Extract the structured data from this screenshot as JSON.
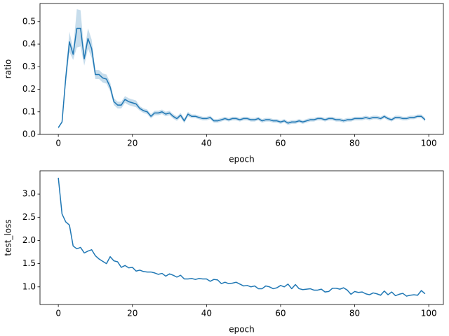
{
  "chart_data": [
    {
      "type": "line",
      "x_label": "epoch",
      "y_label": "ratio",
      "x": [
        0,
        1,
        2,
        3,
        4,
        5,
        6,
        7,
        8,
        9,
        10,
        11,
        12,
        13,
        14,
        15,
        16,
        17,
        18,
        19,
        20,
        21,
        22,
        23,
        24,
        25,
        26,
        27,
        28,
        29,
        30,
        31,
        32,
        33,
        34,
        35,
        36,
        37,
        38,
        39,
        40,
        41,
        42,
        43,
        44,
        45,
        46,
        47,
        48,
        49,
        50,
        51,
        52,
        53,
        54,
        55,
        56,
        57,
        58,
        59,
        60,
        61,
        62,
        63,
        64,
        65,
        66,
        67,
        68,
        69,
        70,
        71,
        72,
        73,
        74,
        75,
        76,
        77,
        78,
        79,
        80,
        81,
        82,
        83,
        84,
        85,
        86,
        87,
        88,
        89,
        90,
        91,
        92,
        93,
        94,
        95,
        96,
        97,
        98,
        99
      ],
      "series": [
        {
          "color": "#1f77b4",
          "values": [
            0.03,
            0.055,
            0.25,
            0.41,
            0.355,
            0.47,
            0.47,
            0.335,
            0.425,
            0.38,
            0.265,
            0.265,
            0.25,
            0.245,
            0.21,
            0.145,
            0.13,
            0.13,
            0.155,
            0.145,
            0.14,
            0.135,
            0.115,
            0.105,
            0.1,
            0.08,
            0.095,
            0.095,
            0.1,
            0.09,
            0.095,
            0.08,
            0.07,
            0.085,
            0.06,
            0.09,
            0.08,
            0.08,
            0.075,
            0.07,
            0.07,
            0.075,
            0.06,
            0.06,
            0.065,
            0.07,
            0.065,
            0.07,
            0.07,
            0.065,
            0.07,
            0.07,
            0.065,
            0.065,
            0.07,
            0.06,
            0.065,
            0.065,
            0.06,
            0.06,
            0.055,
            0.06,
            0.05,
            0.055,
            0.055,
            0.06,
            0.055,
            0.06,
            0.065,
            0.065,
            0.07,
            0.07,
            0.065,
            0.07,
            0.07,
            0.065,
            0.065,
            0.06,
            0.065,
            0.065,
            0.07,
            0.07,
            0.07,
            0.075,
            0.07,
            0.075,
            0.075,
            0.07,
            0.08,
            0.07,
            0.065,
            0.075,
            0.075,
            0.07,
            0.07,
            0.075,
            0.075,
            0.08,
            0.08,
            0.065
          ],
          "lower": [
            0.025,
            0.05,
            0.22,
            0.365,
            0.33,
            0.385,
            0.39,
            0.305,
            0.38,
            0.34,
            0.245,
            0.245,
            0.23,
            0.225,
            0.19,
            0.13,
            0.115,
            0.115,
            0.14,
            0.13,
            0.125,
            0.12,
            0.105,
            0.095,
            0.09,
            0.07,
            0.085,
            0.085,
            0.09,
            0.08,
            0.085,
            0.07,
            0.06,
            0.075,
            0.05,
            0.08,
            0.072,
            0.072,
            0.067,
            0.062,
            0.062,
            0.067,
            0.052,
            0.052,
            0.057,
            0.062,
            0.057,
            0.062,
            0.062,
            0.057,
            0.062,
            0.062,
            0.057,
            0.057,
            0.062,
            0.052,
            0.057,
            0.057,
            0.052,
            0.052,
            0.047,
            0.052,
            0.042,
            0.047,
            0.047,
            0.052,
            0.047,
            0.052,
            0.057,
            0.057,
            0.062,
            0.062,
            0.057,
            0.062,
            0.062,
            0.057,
            0.057,
            0.052,
            0.057,
            0.057,
            0.062,
            0.062,
            0.062,
            0.067,
            0.062,
            0.067,
            0.067,
            0.062,
            0.072,
            0.062,
            0.057,
            0.067,
            0.067,
            0.062,
            0.062,
            0.067,
            0.067,
            0.072,
            0.072,
            0.057
          ],
          "upper": [
            0.035,
            0.06,
            0.28,
            0.455,
            0.38,
            0.555,
            0.55,
            0.365,
            0.47,
            0.42,
            0.285,
            0.285,
            0.27,
            0.265,
            0.23,
            0.16,
            0.145,
            0.145,
            0.17,
            0.16,
            0.155,
            0.15,
            0.125,
            0.115,
            0.11,
            0.09,
            0.105,
            0.105,
            0.11,
            0.1,
            0.105,
            0.09,
            0.08,
            0.095,
            0.07,
            0.1,
            0.088,
            0.088,
            0.083,
            0.078,
            0.078,
            0.083,
            0.068,
            0.068,
            0.073,
            0.078,
            0.073,
            0.078,
            0.078,
            0.073,
            0.078,
            0.078,
            0.073,
            0.073,
            0.078,
            0.068,
            0.073,
            0.073,
            0.068,
            0.068,
            0.063,
            0.068,
            0.058,
            0.063,
            0.063,
            0.068,
            0.063,
            0.068,
            0.073,
            0.073,
            0.078,
            0.078,
            0.073,
            0.078,
            0.078,
            0.073,
            0.073,
            0.068,
            0.073,
            0.073,
            0.078,
            0.078,
            0.078,
            0.083,
            0.078,
            0.083,
            0.083,
            0.078,
            0.088,
            0.078,
            0.073,
            0.083,
            0.083,
            0.078,
            0.078,
            0.083,
            0.083,
            0.088,
            0.088,
            0.073
          ]
        }
      ],
      "xlim": [
        -4.95,
        103.95
      ],
      "xticks": [
        0,
        20,
        40,
        60,
        80,
        100
      ],
      "ylim": [
        0,
        0.58
      ],
      "yticks": [
        {
          "value": 0,
          "label": "0.0"
        },
        0.1,
        0.2,
        0.3,
        0.4,
        0.5
      ]
    },
    {
      "type": "line",
      "x_label": "epoch",
      "y_label": "test_loss",
      "x": [
        0,
        1,
        2,
        3,
        4,
        5,
        6,
        7,
        8,
        9,
        10,
        11,
        12,
        13,
        14,
        15,
        16,
        17,
        18,
        19,
        20,
        21,
        22,
        23,
        24,
        25,
        26,
        27,
        28,
        29,
        30,
        31,
        32,
        33,
        34,
        35,
        36,
        37,
        38,
        39,
        40,
        41,
        42,
        43,
        44,
        45,
        46,
        47,
        48,
        49,
        50,
        51,
        52,
        53,
        54,
        55,
        56,
        57,
        58,
        59,
        60,
        61,
        62,
        63,
        64,
        65,
        66,
        67,
        68,
        69,
        70,
        71,
        72,
        73,
        74,
        75,
        76,
        77,
        78,
        79,
        80,
        81,
        82,
        83,
        84,
        85,
        86,
        87,
        88,
        89,
        90,
        91,
        92,
        93,
        94,
        95,
        96,
        97,
        98,
        99
      ],
      "series": [
        {
          "color": "#1f77b4",
          "values": [
            3.35,
            2.57,
            2.4,
            2.33,
            1.88,
            1.82,
            1.85,
            1.73,
            1.77,
            1.8,
            1.67,
            1.6,
            1.55,
            1.5,
            1.65,
            1.56,
            1.54,
            1.42,
            1.46,
            1.41,
            1.42,
            1.34,
            1.36,
            1.33,
            1.32,
            1.32,
            1.3,
            1.27,
            1.29,
            1.23,
            1.28,
            1.25,
            1.21,
            1.25,
            1.17,
            1.17,
            1.18,
            1.16,
            1.18,
            1.17,
            1.17,
            1.12,
            1.16,
            1.15,
            1.07,
            1.1,
            1.07,
            1.08,
            1.1,
            1.06,
            1.02,
            1.03,
            1.0,
            1.02,
            0.96,
            0.96,
            1.02,
            1.0,
            0.96,
            0.98,
            1.03,
            1.0,
            1.06,
            0.96,
            1.05,
            0.96,
            0.94,
            0.95,
            0.96,
            0.93,
            0.93,
            0.95,
            0.89,
            0.9,
            0.97,
            0.97,
            0.95,
            0.98,
            0.93,
            0.84,
            0.9,
            0.88,
            0.89,
            0.85,
            0.83,
            0.87,
            0.85,
            0.82,
            0.91,
            0.83,
            0.89,
            0.81,
            0.84,
            0.86,
            0.8,
            0.82,
            0.83,
            0.82,
            0.92,
            0.85
          ]
        }
      ],
      "xlim": [
        -4.95,
        103.95
      ],
      "xticks": [
        0,
        20,
        40,
        60,
        80,
        100
      ],
      "ylim": [
        0.62,
        3.5
      ],
      "yticks": [
        {
          "value": 1,
          "label": "1.0"
        },
        1.5,
        {
          "value": 2,
          "label": "2.0"
        },
        2.5,
        {
          "value": 3,
          "label": "3.0"
        }
      ]
    }
  ]
}
